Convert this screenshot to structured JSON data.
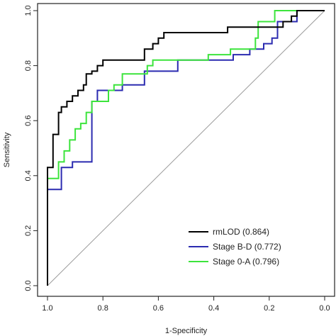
{
  "chart_data": {
    "type": "line",
    "title": "",
    "xlabel": "1-Specificity",
    "ylabel": "Sensitivity",
    "xlim": [
      1.0,
      0.0
    ],
    "ylim": [
      0.0,
      1.0
    ],
    "x_ticks": [
      "1.0",
      "0.8",
      "0.6",
      "0.4",
      "0.2",
      "0.0"
    ],
    "y_ticks": [
      "0.0",
      "0.2",
      "0.4",
      "0.6",
      "0.8",
      "1.0"
    ],
    "x_reversed": true,
    "grid": false,
    "reference_line": "diagonal",
    "legend_position": "bottom-right",
    "series": [
      {
        "name": "rmLOD (0.864)",
        "color": "#000000",
        "points": [
          [
            1.0,
            0.0
          ],
          [
            1.0,
            0.43
          ],
          [
            0.98,
            0.43
          ],
          [
            0.98,
            0.55
          ],
          [
            0.96,
            0.55
          ],
          [
            0.96,
            0.63
          ],
          [
            0.95,
            0.63
          ],
          [
            0.95,
            0.65
          ],
          [
            0.93,
            0.65
          ],
          [
            0.93,
            0.67
          ],
          [
            0.91,
            0.67
          ],
          [
            0.91,
            0.69
          ],
          [
            0.89,
            0.69
          ],
          [
            0.89,
            0.71
          ],
          [
            0.87,
            0.71
          ],
          [
            0.87,
            0.73
          ],
          [
            0.86,
            0.73
          ],
          [
            0.86,
            0.77
          ],
          [
            0.84,
            0.77
          ],
          [
            0.84,
            0.78
          ],
          [
            0.82,
            0.78
          ],
          [
            0.82,
            0.8
          ],
          [
            0.8,
            0.8
          ],
          [
            0.8,
            0.82
          ],
          [
            0.65,
            0.82
          ],
          [
            0.65,
            0.86
          ],
          [
            0.62,
            0.86
          ],
          [
            0.62,
            0.88
          ],
          [
            0.6,
            0.88
          ],
          [
            0.6,
            0.9
          ],
          [
            0.58,
            0.9
          ],
          [
            0.58,
            0.92
          ],
          [
            0.35,
            0.92
          ],
          [
            0.35,
            0.94
          ],
          [
            0.15,
            0.94
          ],
          [
            0.15,
            0.96
          ],
          [
            0.12,
            0.96
          ],
          [
            0.12,
            0.98
          ],
          [
            0.1,
            0.98
          ],
          [
            0.1,
            1.0
          ],
          [
            0.0,
            1.0
          ]
        ]
      },
      {
        "name": "Stage B-D (0.772)",
        "color": "#2b2bb0",
        "points": [
          [
            1.0,
            0.0
          ],
          [
            1.0,
            0.35
          ],
          [
            0.95,
            0.35
          ],
          [
            0.95,
            0.43
          ],
          [
            0.91,
            0.43
          ],
          [
            0.91,
            0.45
          ],
          [
            0.84,
            0.45
          ],
          [
            0.84,
            0.67
          ],
          [
            0.82,
            0.67
          ],
          [
            0.82,
            0.71
          ],
          [
            0.73,
            0.71
          ],
          [
            0.73,
            0.73
          ],
          [
            0.65,
            0.73
          ],
          [
            0.65,
            0.78
          ],
          [
            0.53,
            0.78
          ],
          [
            0.53,
            0.82
          ],
          [
            0.33,
            0.82
          ],
          [
            0.33,
            0.84
          ],
          [
            0.27,
            0.84
          ],
          [
            0.27,
            0.86
          ],
          [
            0.22,
            0.86
          ],
          [
            0.22,
            0.88
          ],
          [
            0.19,
            0.88
          ],
          [
            0.19,
            0.9
          ],
          [
            0.17,
            0.9
          ],
          [
            0.17,
            0.96
          ],
          [
            0.1,
            0.96
          ],
          [
            0.1,
            1.0
          ],
          [
            0.0,
            1.0
          ]
        ]
      },
      {
        "name": "Stage 0-A (0.796)",
        "color": "#3ce43c",
        "points": [
          [
            1.0,
            0.0
          ],
          [
            1.0,
            0.39
          ],
          [
            0.96,
            0.39
          ],
          [
            0.96,
            0.45
          ],
          [
            0.94,
            0.45
          ],
          [
            0.94,
            0.49
          ],
          [
            0.92,
            0.49
          ],
          [
            0.92,
            0.53
          ],
          [
            0.9,
            0.53
          ],
          [
            0.9,
            0.57
          ],
          [
            0.88,
            0.57
          ],
          [
            0.88,
            0.59
          ],
          [
            0.86,
            0.59
          ],
          [
            0.86,
            0.63
          ],
          [
            0.84,
            0.63
          ],
          [
            0.84,
            0.67
          ],
          [
            0.78,
            0.67
          ],
          [
            0.78,
            0.71
          ],
          [
            0.76,
            0.71
          ],
          [
            0.76,
            0.73
          ],
          [
            0.73,
            0.73
          ],
          [
            0.73,
            0.77
          ],
          [
            0.64,
            0.77
          ],
          [
            0.64,
            0.8
          ],
          [
            0.62,
            0.8
          ],
          [
            0.62,
            0.82
          ],
          [
            0.42,
            0.82
          ],
          [
            0.42,
            0.84
          ],
          [
            0.34,
            0.84
          ],
          [
            0.34,
            0.86
          ],
          [
            0.25,
            0.86
          ],
          [
            0.25,
            0.9
          ],
          [
            0.24,
            0.9
          ],
          [
            0.24,
            0.96
          ],
          [
            0.18,
            0.96
          ],
          [
            0.18,
            1.0
          ],
          [
            0.0,
            1.0
          ]
        ]
      }
    ]
  }
}
